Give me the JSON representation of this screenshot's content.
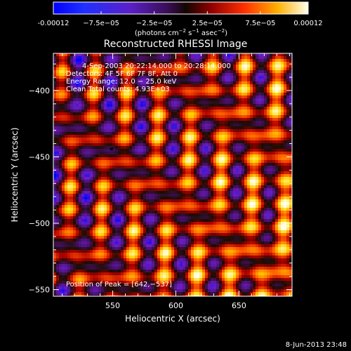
{
  "chart_data": {
    "type": "heatmap",
    "title": "Reconstructed RHESSI Image",
    "xlabel": "Heliocentric X (arcsec)",
    "ylabel": "Heliocentric Y (arcsec)",
    "xlim": [
      503,
      692
    ],
    "ylim": [
      -555,
      -372
    ],
    "x_ticks": [
      550,
      600,
      650
    ],
    "y_ticks": [
      -400,
      -450,
      -500,
      -550
    ],
    "colorbar": {
      "range": [
        -0.00012,
        0.00012
      ],
      "ticks": [
        {
          "value": -0.00012,
          "label": "-0.00012"
        },
        {
          "value": -7.5e-05,
          "label": "−7.5e−05"
        },
        {
          "value": -2.5e-05,
          "label": "−2.5e−05"
        },
        {
          "value": 2.5e-05,
          "label": "2.5e−05"
        },
        {
          "value": 7.5e-05,
          "label": "7.5e−05"
        },
        {
          "value": 0.00012,
          "label": "0.00012"
        }
      ],
      "units_prefix": "(photons cm",
      "units_sup1": "−2",
      "units_mid": " s",
      "units_sup2": "−1",
      "units_mid2": " asec",
      "units_sup3": "−2",
      "units_suffix": ")"
    },
    "info_lines": [
      "4-Sep-2003 20:22:14.000 to 20:28:14.000",
      "Detectors: 4F 5F 6F 7F 8F, Att 0",
      "Energy Range: 12.0 − 25.0 keV",
      "Clean    Total counts: 4.93E+03"
    ],
    "peak_label": "Position of Peak = [642,−537]",
    "peak": [
      642,
      -537
    ],
    "marker": [
      549,
      -444
    ],
    "footer_date": "8-Jun-2013 23:48",
    "colormap": [
      "#0000ff",
      "#6a1fc4",
      "#4b0f6e",
      "#1a0d00",
      "#b40000",
      "#ff5a00",
      "#ffd400",
      "#ffffe8"
    ]
  }
}
